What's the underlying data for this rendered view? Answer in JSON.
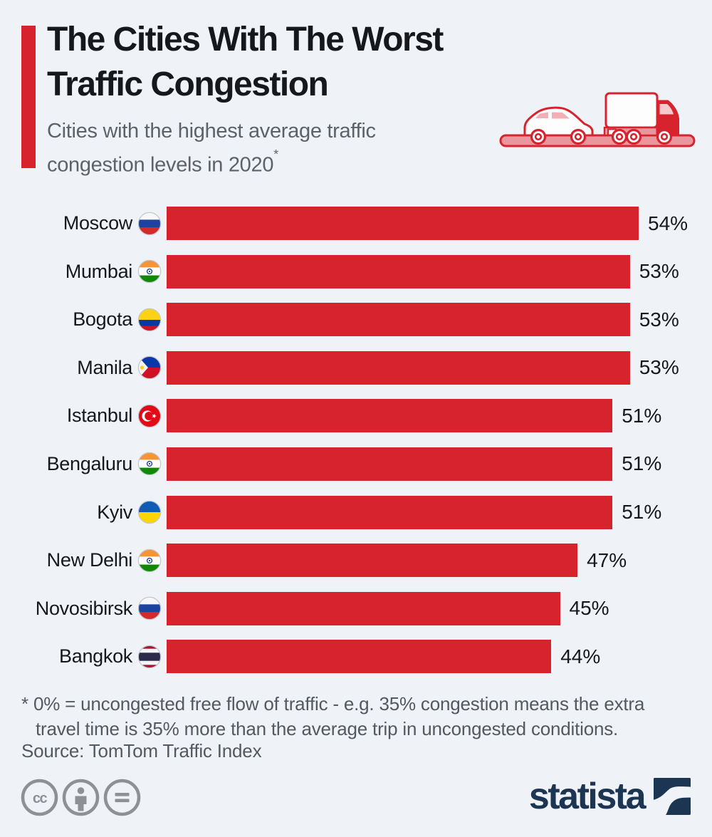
{
  "header": {
    "title_line1": "The Cities With The Worst",
    "title_line2": "Traffic Congestion",
    "subtitle_line1": "Cities with the highest average traffic",
    "subtitle_line2": "congestion levels in 2020",
    "subtitle_footnote_marker": "*",
    "accent_color": "#d6232e",
    "hero_icon": "car-behind-truck-traffic-icon"
  },
  "chart_data": {
    "type": "bar",
    "orientation": "horizontal",
    "title": "The Cities With The Worst Traffic Congestion",
    "subtitle": "Cities with the highest average traffic congestion levels in 2020*",
    "unit": "%",
    "categories": [
      "Moscow",
      "Mumbai",
      "Bogota",
      "Manila",
      "Istanbul",
      "Bengaluru",
      "Kyiv",
      "New Delhi",
      "Novosibirsk",
      "Bangkok"
    ],
    "values": [
      54,
      53,
      53,
      53,
      51,
      51,
      51,
      47,
      45,
      44
    ],
    "value_labels": [
      "54%",
      "53%",
      "53%",
      "53%",
      "51%",
      "51%",
      "51%",
      "47%",
      "45%",
      "44%"
    ],
    "flags": [
      "russia",
      "india",
      "colombia",
      "philippines",
      "turkey",
      "india",
      "ukraine",
      "india",
      "russia",
      "thailand"
    ],
    "xlim": [
      0,
      54
    ],
    "bar_color": "#d6232e",
    "grid": "off",
    "legend": "none"
  },
  "footer": {
    "footnote_line1": "* 0% = uncongested free flow of traffic - e.g. 35% congestion means the extra",
    "footnote_line2": "travel time is 35% more than the average trip in uncongested conditions.",
    "source": "Source: TomTom Traffic Index",
    "license_icons": [
      "cc-icon",
      "attribution-icon",
      "no-derivatives-icon"
    ],
    "brand": "statista"
  }
}
